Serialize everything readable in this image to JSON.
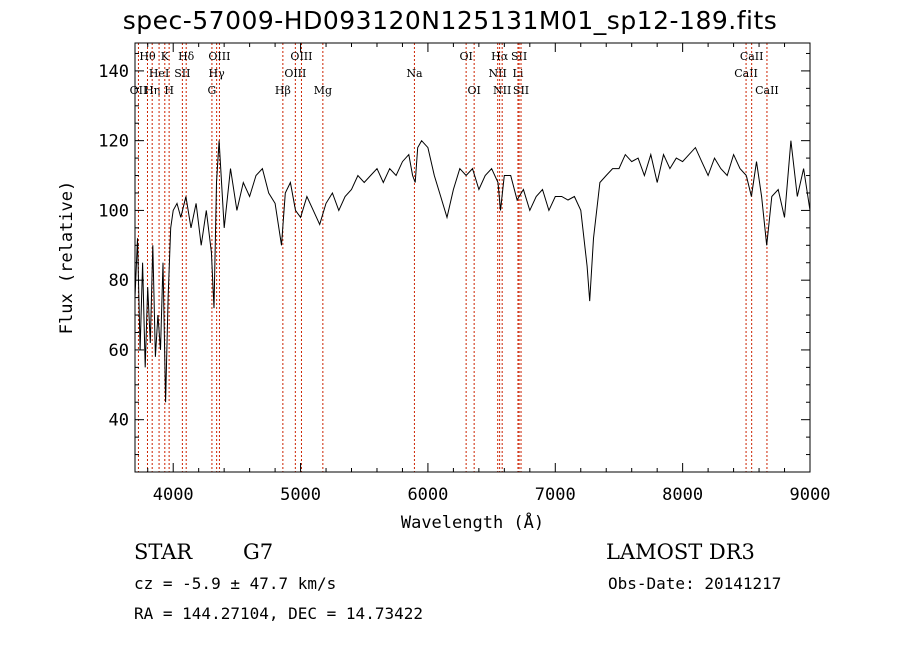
{
  "title": "spec-57009-HD093120N125131M01_sp12-189.fits",
  "info": {
    "class_label": "STAR",
    "subclass": "G7",
    "survey": "LAMOST DR3",
    "redshift": "cz = -5.9 ± 47.7 km/s",
    "obs_date": "Obs-Date: 20141217",
    "coords": "RA = 144.27104, DEC =  14.73422"
  },
  "chart_data": {
    "type": "line",
    "title": "spec-57009-HD093120N125131M01_sp12-189.fits",
    "xlabel": "Wavelength (Å)",
    "ylabel": "Flux (relative)",
    "xlim": [
      3700,
      9000
    ],
    "ylim": [
      25,
      148
    ],
    "xticks": [
      4000,
      5000,
      6000,
      7000,
      8000,
      9000
    ],
    "yticks": [
      40,
      60,
      80,
      100,
      120,
      140
    ],
    "grid": false,
    "series": [
      {
        "x": [
          3700,
          3720,
          3740,
          3760,
          3780,
          3800,
          3820,
          3840,
          3860,
          3880,
          3900,
          3920,
          3940,
          3960,
          3980,
          4000,
          4030,
          4060,
          4100,
          4140,
          4180,
          4220,
          4260,
          4300,
          4320,
          4340,
          4360,
          4400,
          4450,
          4500,
          4550,
          4600,
          4650,
          4700,
          4750,
          4800,
          4850,
          4880,
          4920,
          4960,
          5000,
          5050,
          5100,
          5150,
          5200,
          5250,
          5300,
          5350,
          5400,
          5450,
          5500,
          5550,
          5600,
          5650,
          5700,
          5750,
          5800,
          5850,
          5880,
          5900,
          5920,
          5950,
          6000,
          6050,
          6100,
          6150,
          6200,
          6250,
          6300,
          6350,
          6400,
          6450,
          6500,
          6550,
          6570,
          6600,
          6650,
          6700,
          6750,
          6800,
          6850,
          6900,
          6950,
          7000,
          7050,
          7100,
          7150,
          7200,
          7250,
          7270,
          7300,
          7350,
          7400,
          7450,
          7500,
          7550,
          7600,
          7650,
          7700,
          7750,
          7800,
          7850,
          7900,
          7950,
          8000,
          8050,
          8100,
          8150,
          8200,
          8250,
          8300,
          8350,
          8400,
          8450,
          8500,
          8540,
          8580,
          8620,
          8660,
          8700,
          8750,
          8800,
          8850,
          8900,
          8950,
          9000
        ],
        "y": [
          75,
          92,
          60,
          85,
          55,
          78,
          62,
          90,
          58,
          70,
          60,
          85,
          45,
          75,
          95,
          100,
          102,
          98,
          104,
          95,
          102,
          90,
          100,
          88,
          72,
          108,
          120,
          95,
          112,
          100,
          108,
          104,
          110,
          112,
          105,
          102,
          90,
          105,
          108,
          100,
          98,
          104,
          100,
          96,
          102,
          105,
          100,
          104,
          106,
          110,
          108,
          110,
          112,
          108,
          112,
          110,
          114,
          116,
          110,
          108,
          118,
          120,
          118,
          110,
          104,
          98,
          106,
          112,
          110,
          112,
          106,
          110,
          112,
          108,
          100,
          110,
          110,
          103,
          106,
          100,
          104,
          106,
          100,
          104,
          104,
          103,
          104,
          100,
          84,
          74,
          92,
          108,
          110,
          112,
          112,
          116,
          114,
          115,
          110,
          116,
          108,
          116,
          112,
          115,
          114,
          116,
          118,
          114,
          110,
          115,
          112,
          110,
          116,
          112,
          110,
          104,
          114,
          104,
          90,
          104,
          106,
          98,
          120,
          104,
          112,
          100
        ]
      }
    ],
    "lines": [
      {
        "name": "OII",
        "wl": 3727,
        "row": 2
      },
      {
        "name": "Hθ",
        "wl": 3798,
        "row": 0
      },
      {
        "name": "Hη",
        "wl": 3835,
        "row": 2
      },
      {
        "name": "HeI",
        "wl": 3889,
        "row": 1
      },
      {
        "name": "K",
        "wl": 3934,
        "row": 0
      },
      {
        "name": "H",
        "wl": 3968,
        "row": 2
      },
      {
        "name": "SII",
        "wl": 4072,
        "row": 1
      },
      {
        "name": "Hδ",
        "wl": 4102,
        "row": 0
      },
      {
        "name": "G",
        "wl": 4304,
        "row": 2
      },
      {
        "name": "Hγ",
        "wl": 4341,
        "row": 1
      },
      {
        "name": "OIII",
        "wl": 4363,
        "row": 0
      },
      {
        "name": "Hβ",
        "wl": 4861,
        "row": 2
      },
      {
        "name": "OIII",
        "wl": 4959,
        "row": 1
      },
      {
        "name": "OIII",
        "wl": 5007,
        "row": 0
      },
      {
        "name": "Mg",
        "wl": 5175,
        "row": 2
      },
      {
        "name": "Na",
        "wl": 5894,
        "row": 1
      },
      {
        "name": "OI",
        "wl": 6300,
        "row": 0
      },
      {
        "name": "OI",
        "wl": 6363,
        "row": 2
      },
      {
        "name": "NII",
        "wl": 6548,
        "row": 1
      },
      {
        "name": "Hα",
        "wl": 6563,
        "row": 0
      },
      {
        "name": "NII",
        "wl": 6583,
        "row": 2
      },
      {
        "name": "SII",
        "wl": 6716,
        "row": 0
      },
      {
        "name": "Li",
        "wl": 6707,
        "row": 1
      },
      {
        "name": "SII",
        "wl": 6731,
        "row": 2
      },
      {
        "name": "CaII",
        "wl": 8498,
        "row": 1
      },
      {
        "name": "CaII",
        "wl": 8542,
        "row": 0
      },
      {
        "name": "CaII",
        "wl": 8662,
        "row": 2
      }
    ],
    "line_color": "#cc2200"
  }
}
